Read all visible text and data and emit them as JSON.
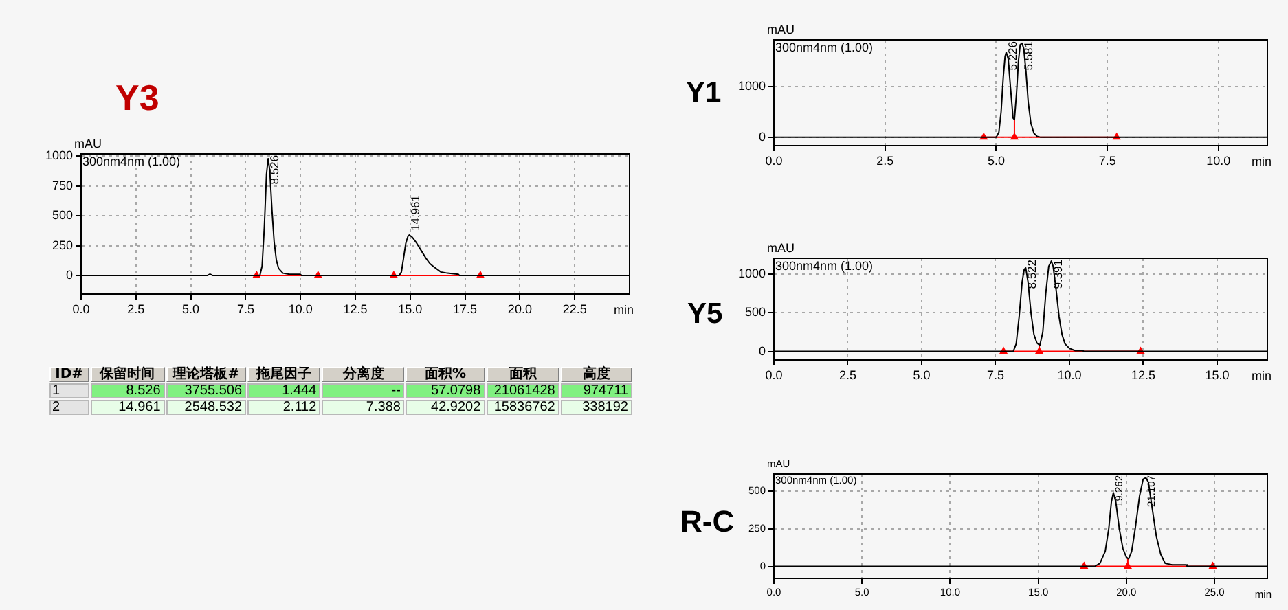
{
  "chart_data": [
    {
      "type": "line",
      "title": "Y3",
      "xlabel": "min",
      "ylabel": "mAU",
      "xlim": [
        0,
        25
      ],
      "ylim": [
        -155,
        1020
      ],
      "xticks": [
        {
          "value": 0,
          "label": "0.0"
        },
        2.5,
        {
          "value": 5,
          "label": "5.0"
        },
        7.5,
        {
          "value": 10,
          "label": "10.0"
        },
        12.5,
        {
          "value": 15,
          "label": "15.0"
        },
        17.5,
        {
          "value": 20,
          "label": "20.0"
        },
        22.5
      ],
      "yticks": [
        0,
        250,
        500,
        750,
        1000
      ],
      "grid": true,
      "annotations": [
        "300nm4nm (1.00)",
        {
          "text": "8.526",
          "x": 8.526,
          "y": 980
        },
        {
          "text": "14.961",
          "x": 14.961,
          "y": 340
        }
      ],
      "series": [
        {
          "type": "line",
          "color": "#000000",
          "x": [
            0,
            5.75,
            5.85,
            5.9,
            6.0,
            8.15,
            8.25,
            8.35,
            8.45,
            8.526,
            8.6,
            8.7,
            8.8,
            8.9,
            9.0,
            9.2,
            9.5,
            10.0,
            10.05,
            14.5,
            14.6,
            14.7,
            14.8,
            14.9,
            14.961,
            15.1,
            15.3,
            15.5,
            15.7,
            15.9,
            16.1,
            16.4,
            16.7,
            17.2,
            17.25,
            25
          ],
          "values": [
            0,
            0,
            10,
            10,
            0,
            0,
            80,
            400,
            850,
            980,
            880,
            550,
            280,
            130,
            60,
            20,
            10,
            10,
            0,
            0,
            30,
            150,
            270,
            330,
            340,
            320,
            270,
            210,
            150,
            100,
            70,
            30,
            20,
            10,
            0,
            0
          ]
        },
        {
          "type": "line",
          "color": "#ff0000",
          "marker": "triangle",
          "x": [
            8.0,
            10.8
          ],
          "values": [
            0,
            0
          ]
        },
        {
          "type": "line",
          "color": "#ff0000",
          "marker": "triangle",
          "x": [
            14.25,
            18.2
          ],
          "values": [
            0,
            0
          ]
        }
      ]
    },
    {
      "type": "other",
      "ylabel": "ID#",
      "categories": [
        "保留时间",
        "理论塔板#",
        "拖尾因子",
        "分离度",
        "面积%",
        "面积",
        "高度"
      ],
      "y_categories": [
        "1",
        "2"
      ],
      "cell_labels": [
        [
          "8.526",
          "3755.506",
          "1.444",
          "--",
          "57.0798",
          "21061428",
          "974711"
        ],
        [
          "14.961",
          "2548.532",
          "2.112",
          "7.388",
          "42.9202",
          "15836762",
          "338192"
        ]
      ],
      "colors": [
        "#80f080",
        "#e8fde8"
      ]
    },
    {
      "type": "line",
      "title": "Y1",
      "xlabel": "min",
      "ylabel": "mAU",
      "xlim": [
        0,
        11.1
      ],
      "ylim": [
        -165,
        1925
      ],
      "xticks": [
        {
          "value": 0,
          "label": "0.0"
        },
        2.5,
        {
          "value": 5,
          "label": "5.0"
        },
        7.5,
        {
          "value": 10,
          "label": "10.0"
        }
      ],
      "yticks": [
        0,
        1000
      ],
      "grid": true,
      "annotations": [
        "300nm4nm (1.00)",
        {
          "text": "5.226",
          "x": 5.226,
          "y": 1680
        },
        {
          "text": "5.581",
          "x": 5.581,
          "y": 1860
        }
      ],
      "series": [
        {
          "type": "line",
          "color": "#000000",
          "x": [
            0,
            5.0,
            5.06,
            5.11,
            5.16,
            5.2,
            5.226,
            5.27,
            5.32,
            5.38,
            5.41,
            5.46,
            5.5,
            5.54,
            5.581,
            5.62,
            5.67,
            5.72,
            5.78,
            5.85,
            5.92,
            6.0,
            11.1
          ],
          "values": [
            0,
            0,
            100,
            500,
            1200,
            1600,
            1680,
            1550,
            1000,
            380,
            350,
            900,
            1500,
            1830,
            1860,
            1750,
            1300,
            700,
            280,
            80,
            20,
            0,
            0
          ]
        },
        {
          "type": "line",
          "color": "#ff0000",
          "marker": "triangle",
          "x": [
            4.72,
            5.41,
            7.71
          ],
          "values": [
            0,
            0,
            0
          ]
        },
        {
          "type": "line",
          "color": "#ff0000",
          "x": [
            5.41,
            5.41
          ],
          "values": [
            0,
            350
          ]
        }
      ]
    },
    {
      "type": "line",
      "title": "Y5",
      "xlabel": "min",
      "ylabel": "mAU",
      "xlim": [
        0,
        16.7
      ],
      "ylim": [
        -110,
        1205
      ],
      "xticks": [
        {
          "value": 0,
          "label": "0.0"
        },
        2.5,
        {
          "value": 5,
          "label": "5.0"
        },
        7.5,
        {
          "value": 10,
          "label": "10.0"
        },
        12.5,
        {
          "value": 15,
          "label": "15.0"
        }
      ],
      "yticks": [
        0,
        500,
        1000
      ],
      "grid": true,
      "annotations": [
        "300nm4nm (1.00)",
        {
          "text": "8.522",
          "x": 8.522,
          "y": 1080
        },
        {
          "text": "9.391",
          "x": 9.391,
          "y": 1170
        }
      ],
      "series": [
        {
          "type": "line",
          "color": "#000000",
          "x": [
            0,
            8.1,
            8.2,
            8.3,
            8.4,
            8.47,
            8.522,
            8.6,
            8.7,
            8.8,
            8.9,
            9.0,
            9.1,
            9.2,
            9.3,
            9.391,
            9.45,
            9.55,
            9.65,
            9.75,
            9.85,
            10.0,
            10.2,
            10.45,
            10.5,
            16.7
          ],
          "values": [
            0,
            0,
            100,
            450,
            900,
            1060,
            1080,
            900,
            500,
            220,
            110,
            80,
            250,
            750,
            1100,
            1170,
            1100,
            800,
            450,
            220,
            100,
            40,
            10,
            10,
            0,
            0
          ]
        },
        {
          "type": "line",
          "color": "#ff0000",
          "marker": "triangle",
          "x": [
            7.77,
            8.98,
            12.41
          ],
          "values": [
            0,
            0,
            0
          ]
        },
        {
          "type": "line",
          "color": "#ff0000",
          "x": [
            8.98,
            8.98
          ],
          "values": [
            0,
            90
          ]
        }
      ]
    },
    {
      "type": "line",
      "title": "R-C",
      "xlabel": "min",
      "ylabel": "mAU",
      "xlim": [
        0,
        28
      ],
      "ylim": [
        -80,
        615
      ],
      "xticks": [
        {
          "value": 0,
          "label": "0.0"
        },
        {
          "value": 5,
          "label": "5.0"
        },
        {
          "value": 10,
          "label": "10.0"
        },
        {
          "value": 15,
          "label": "15.0"
        },
        {
          "value": 20,
          "label": "20.0"
        },
        {
          "value": 25,
          "label": "25.0"
        }
      ],
      "yticks": [
        0,
        250,
        500
      ],
      "grid": true,
      "annotations": [
        "300nm4nm (1.00)",
        {
          "text": "19.262",
          "x": 19.262,
          "y": 490
        },
        {
          "text": "21.107",
          "x": 21.107,
          "y": 590
        }
      ],
      "series": [
        {
          "type": "line",
          "color": "#000000",
          "x": [
            0,
            18.2,
            18.5,
            18.8,
            19.0,
            19.15,
            19.262,
            19.4,
            19.6,
            19.8,
            20.0,
            20.13,
            20.3,
            20.5,
            20.75,
            20.95,
            21.107,
            21.25,
            21.45,
            21.7,
            21.95,
            22.2,
            22.6,
            23.4,
            23.45,
            28
          ],
          "values": [
            0,
            0,
            20,
            100,
            250,
            430,
            490,
            430,
            250,
            120,
            60,
            50,
            100,
            250,
            470,
            580,
            590,
            560,
            400,
            200,
            80,
            20,
            10,
            10,
            0,
            0
          ]
        },
        {
          "type": "line",
          "color": "#ff0000",
          "marker": "triangle",
          "x": [
            17.6,
            20.08,
            24.9
          ],
          "values": [
            0,
            0,
            0
          ]
        },
        {
          "type": "line",
          "color": "#ff0000",
          "x": [
            20.08,
            20.08
          ],
          "values": [
            0,
            50
          ]
        }
      ]
    }
  ]
}
